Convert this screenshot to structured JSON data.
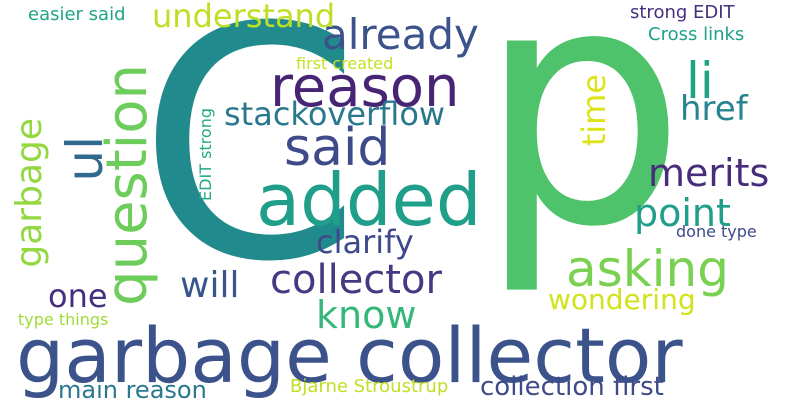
{
  "words": [
    {
      "text": "p",
      "color": "#4fc36b"
    },
    {
      "text": "C",
      "color": "#218a8d"
    },
    {
      "text": "garbage collector",
      "color": "#3b528b"
    },
    {
      "text": "added",
      "color": "#1f9e89"
    },
    {
      "text": "reason",
      "color": "#482475"
    },
    {
      "text": "question",
      "color": "#6ccd5a"
    },
    {
      "text": "said",
      "color": "#3e4a89"
    },
    {
      "text": "asking",
      "color": "#7ad151"
    },
    {
      "text": "li",
      "color": "#20a486"
    },
    {
      "text": "ul",
      "color": "#31688e"
    },
    {
      "text": "already",
      "color": "#3b528b"
    },
    {
      "text": "collector",
      "color": "#443a83"
    },
    {
      "text": "know",
      "color": "#35b779"
    },
    {
      "text": "merits",
      "color": "#472d7b"
    },
    {
      "text": "point",
      "color": "#1f9e89"
    },
    {
      "text": "understand",
      "color": "#bddf26"
    },
    {
      "text": "stackoverflow",
      "color": "#2a788e"
    },
    {
      "text": "href",
      "color": "#25848e"
    },
    {
      "text": "time",
      "color": "#dde318"
    },
    {
      "text": "clarify",
      "color": "#3e4a89"
    },
    {
      "text": "will",
      "color": "#39568c"
    },
    {
      "text": "garbage",
      "color": "#93d741"
    },
    {
      "text": "one",
      "color": "#46307e"
    },
    {
      "text": "wondering",
      "color": "#d2e21b"
    },
    {
      "text": "collection first",
      "color": "#3e4a89"
    },
    {
      "text": "main reason",
      "color": "#2a788e"
    },
    {
      "text": "Bjarne Stroustrup",
      "color": "#c2df23"
    },
    {
      "text": "easier said",
      "color": "#20a486"
    },
    {
      "text": "strong EDIT",
      "color": "#46307e"
    },
    {
      "text": "Cross links",
      "color": "#1fa188"
    },
    {
      "text": "first created",
      "color": "#c8e020"
    },
    {
      "text": "EDIT strong",
      "color": "#22a884"
    },
    {
      "text": "done type",
      "color": "#3e4a89"
    },
    {
      "text": "type things",
      "color": "#a0da39"
    }
  ]
}
